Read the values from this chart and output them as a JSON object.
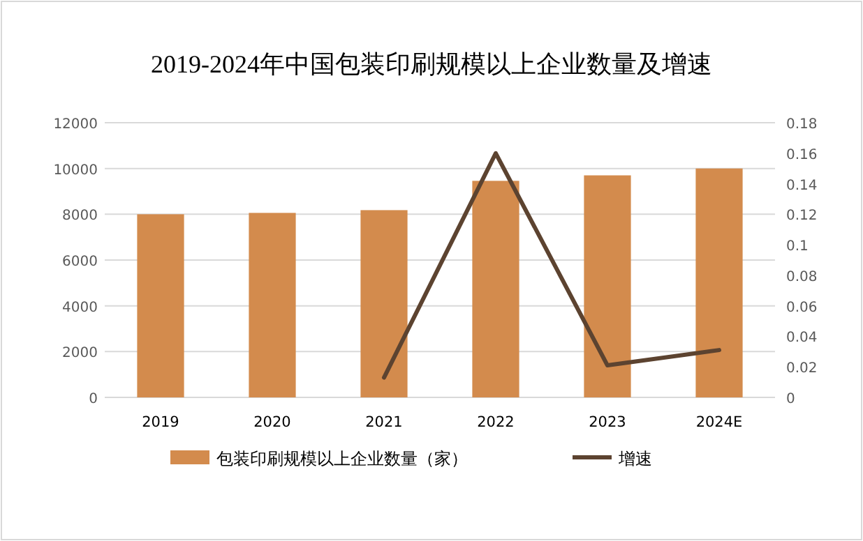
{
  "chart_data": {
    "type": "bar",
    "title": "2019-2024年中国包装印刷规模以上企业数量及增速",
    "categories": [
      "2019",
      "2020",
      "2021",
      "2022",
      "2023",
      "2024E"
    ],
    "series": [
      {
        "name": "包装印刷规模以上企业数量（家）",
        "color": "#d38b4d",
        "values": [
          8000,
          8060,
          8180,
          9460,
          9700,
          10000
        ]
      },
      {
        "name": "增速",
        "type": "line",
        "axis": "y2",
        "color": "#5c4330",
        "values": [
          null,
          null,
          0.013,
          0.16,
          0.021,
          0.031
        ]
      }
    ],
    "ylim": [
      0,
      12000
    ],
    "yticks": [
      0,
      2000,
      4000,
      6000,
      8000,
      10000,
      12000
    ],
    "y2lim": [
      0,
      0.18
    ],
    "y2ticks": [
      0,
      0.02,
      0.04,
      0.06,
      0.08,
      0.1,
      0.12,
      0.14,
      0.16,
      0.18
    ],
    "grid": "y",
    "legend": "bottom",
    "marker": "none",
    "line_style": "solid"
  }
}
